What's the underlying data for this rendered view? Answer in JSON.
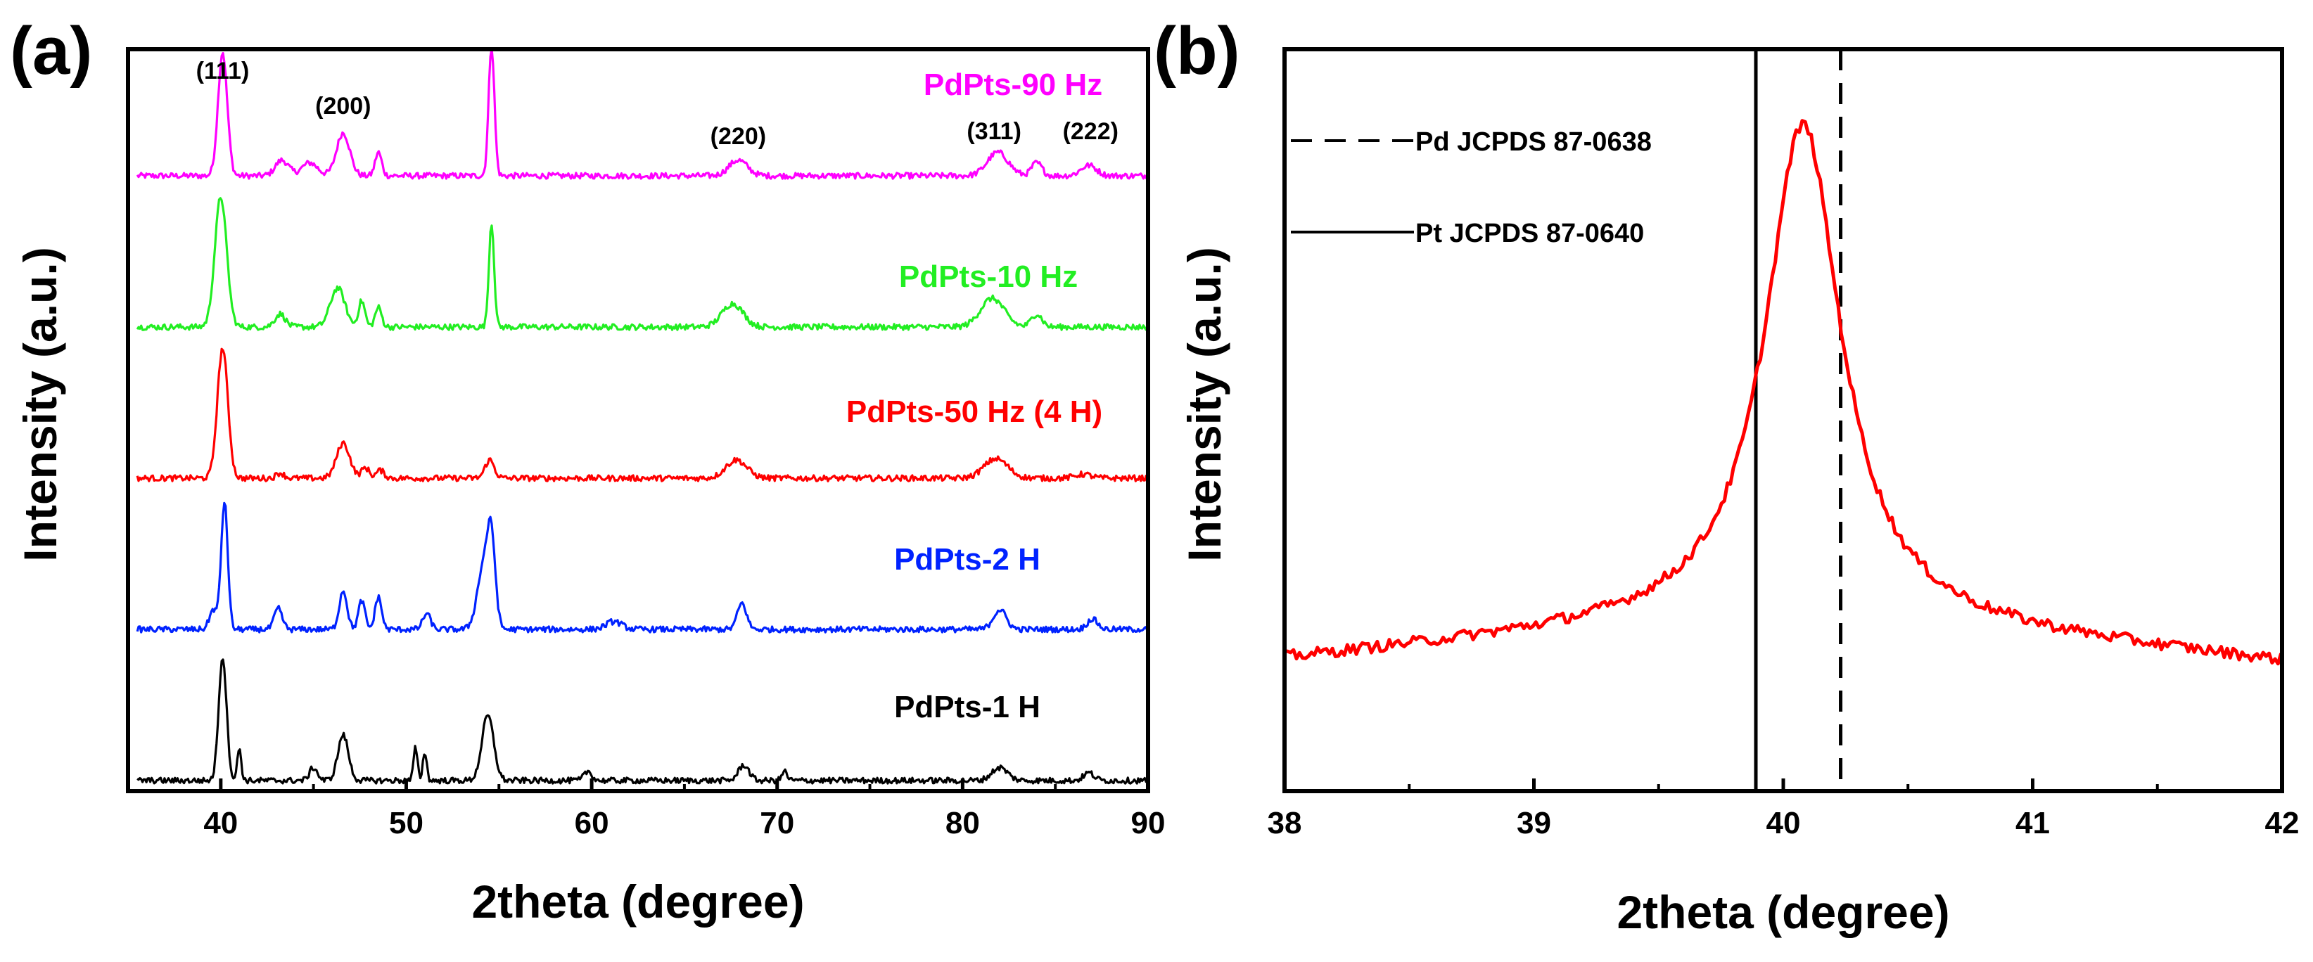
{
  "chart_data": [
    {
      "panel": "(a)",
      "type": "line",
      "xlabel": "2theta (degree)",
      "ylabel": "Intensity (a.u.)",
      "xlim": [
        35,
        90
      ],
      "xticks": [
        40,
        50,
        60,
        70,
        80,
        90
      ],
      "y_ticks_shown": false,
      "legend": "none",
      "peak_labels": [
        {
          "text": "(111)",
          "x": 40.1
        },
        {
          "text": "(200)",
          "x": 46.6
        },
        {
          "text": "(220)",
          "x": 67.9
        },
        {
          "text": "(311)",
          "x": 81.7
        },
        {
          "text": "(222)",
          "x": 86.9
        }
      ],
      "series": [
        {
          "name": "PdPts-90 Hz",
          "color": "#ff00ff",
          "offset": 4.0,
          "peaks": [
            [
              40.1,
              0.95,
              0.35
            ],
            [
              43.3,
              0.12,
              0.5
            ],
            [
              44.8,
              0.1,
              0.6
            ],
            [
              46.6,
              0.33,
              0.5
            ],
            [
              48.5,
              0.18,
              0.25
            ],
            [
              54.6,
              1.0,
              0.22
            ],
            [
              67.9,
              0.12,
              0.7
            ],
            [
              81.9,
              0.18,
              0.8
            ],
            [
              84.0,
              0.1,
              0.4
            ],
            [
              86.8,
              0.08,
              0.6
            ]
          ]
        },
        {
          "name": "PdPts-10 Hz",
          "color": "#22ee22",
          "offset": 3.0,
          "peaks": [
            [
              40.0,
              1.0,
              0.45
            ],
            [
              43.2,
              0.1,
              0.4
            ],
            [
              46.3,
              0.3,
              0.55
            ],
            [
              47.6,
              0.2,
              0.25
            ],
            [
              48.5,
              0.15,
              0.25
            ],
            [
              54.6,
              0.8,
              0.2
            ],
            [
              67.6,
              0.18,
              0.8
            ],
            [
              81.6,
              0.22,
              0.9
            ],
            [
              84.0,
              0.1,
              0.4
            ]
          ]
        },
        {
          "name": "PdPts-50 Hz (4 H)",
          "color": "#ff0000",
          "offset": 2.0,
          "peaks": [
            [
              40.1,
              1.0,
              0.4
            ],
            [
              43.2,
              0.04,
              0.3
            ],
            [
              46.6,
              0.27,
              0.5
            ],
            [
              47.8,
              0.08,
              0.3
            ],
            [
              48.6,
              0.06,
              0.3
            ],
            [
              54.5,
              0.14,
              0.35
            ],
            [
              67.8,
              0.14,
              0.8
            ],
            [
              81.8,
              0.15,
              0.9
            ],
            [
              86.5,
              0.03,
              0.6
            ]
          ]
        },
        {
          "name": "PdPts-2 H",
          "color": "#0022ff",
          "offset": 1.0,
          "peaks": [
            [
              39.6,
              0.15,
              0.3
            ],
            [
              40.2,
              0.98,
              0.25
            ],
            [
              43.1,
              0.16,
              0.3
            ],
            [
              46.6,
              0.3,
              0.3
            ],
            [
              47.6,
              0.22,
              0.25
            ],
            [
              48.5,
              0.25,
              0.25
            ],
            [
              51.1,
              0.12,
              0.3
            ],
            [
              54.2,
              0.5,
              0.5
            ],
            [
              54.6,
              0.55,
              0.3
            ],
            [
              61.2,
              0.06,
              0.6
            ],
            [
              68.1,
              0.2,
              0.35
            ],
            [
              82.0,
              0.15,
              0.5
            ],
            [
              87.0,
              0.08,
              0.4
            ]
          ]
        },
        {
          "name": "PdPts-1 H",
          "color": "#000000",
          "offset": 0.0,
          "peaks": [
            [
              40.1,
              0.95,
              0.3
            ],
            [
              41.0,
              0.25,
              0.15
            ],
            [
              45.0,
              0.1,
              0.3
            ],
            [
              46.6,
              0.35,
              0.4
            ],
            [
              50.5,
              0.25,
              0.15
            ],
            [
              51.0,
              0.22,
              0.15
            ],
            [
              54.4,
              0.5,
              0.45
            ],
            [
              59.8,
              0.07,
              0.3
            ],
            [
              68.2,
              0.12,
              0.4
            ],
            [
              70.4,
              0.07,
              0.2
            ],
            [
              82.0,
              0.1,
              0.6
            ],
            [
              86.8,
              0.06,
              0.4
            ]
          ]
        }
      ]
    },
    {
      "panel": "(b)",
      "type": "line",
      "xlabel": "2theta (degree)",
      "ylabel": "Intensity (a.u.)",
      "xlim": [
        38,
        42
      ],
      "xticks": [
        38,
        39,
        40,
        41,
        42
      ],
      "y_ticks_shown": false,
      "legend": "top-left",
      "reference_lines": [
        {
          "name": "Pd JCPDS 87-0638",
          "x": 40.23,
          "style": "dashed",
          "color": "#000000"
        },
        {
          "name": "Pt JCPDS 87-0640",
          "x": 39.89,
          "style": "solid",
          "color": "#000000"
        }
      ],
      "series": [
        {
          "name": "",
          "color": "#ff0000",
          "peak_center": 40.08,
          "peak_width": 0.21,
          "peak_height": 0.78,
          "baseline_start": 0.04,
          "baseline_mid": 0.11,
          "baseline_end": 0.035,
          "points": [
            [
              38.0,
              0.04
            ],
            [
              38.5,
              0.06
            ],
            [
              39.0,
              0.09
            ],
            [
              39.3,
              0.13
            ],
            [
              39.5,
              0.22
            ],
            [
              39.7,
              0.4
            ],
            [
              39.9,
              0.66
            ],
            [
              40.0,
              0.81
            ],
            [
              40.1,
              0.84
            ],
            [
              40.2,
              0.74
            ],
            [
              40.3,
              0.55
            ],
            [
              40.4,
              0.37
            ],
            [
              40.6,
              0.18
            ],
            [
              40.8,
              0.1
            ],
            [
              41.0,
              0.07
            ],
            [
              41.5,
              0.05
            ],
            [
              42.0,
              0.035
            ]
          ]
        }
      ]
    }
  ]
}
